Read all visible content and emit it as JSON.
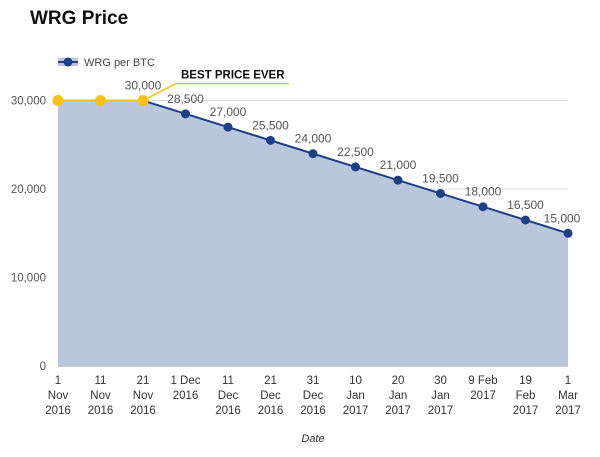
{
  "chart_data": {
    "type": "area",
    "title": "WRG Price",
    "xlabel": "Date",
    "ylabel": "",
    "legend_position": "top-left",
    "ylim": [
      0,
      33000
    ],
    "yticks": [
      0,
      10000,
      20000,
      30000
    ],
    "ytick_labels": [
      "0",
      "10,000",
      "20,000",
      "30,000"
    ],
    "grid": true,
    "categories": [
      [
        "1",
        "Nov",
        "2016"
      ],
      [
        "11",
        "Nov",
        "2016"
      ],
      [
        "21",
        "Nov",
        "2016"
      ],
      [
        "1 Dec",
        "2016"
      ],
      [
        "11",
        "Dec",
        "2016"
      ],
      [
        "21",
        "Dec",
        "2016"
      ],
      [
        "31",
        "Dec",
        "2016"
      ],
      [
        "10",
        "Jan",
        "2017"
      ],
      [
        "20",
        "Jan",
        "2017"
      ],
      [
        "30",
        "Jan",
        "2017"
      ],
      [
        "9 Feb",
        "2017"
      ],
      [
        "19",
        "Feb",
        "2017"
      ],
      [
        "1",
        "Mar",
        "2017"
      ]
    ],
    "series": [
      {
        "name": "WRG per BTC",
        "values": [
          30000,
          30000,
          30000,
          28500,
          27000,
          25500,
          24000,
          22500,
          21000,
          19500,
          18000,
          16500,
          15000
        ],
        "data_labels": [
          "",
          "",
          "30,000",
          "28,500",
          "27,000",
          "25,500",
          "24,000",
          "22,500",
          "21,000",
          "19,500",
          "18,000",
          "16,500",
          "15,000"
        ],
        "highlight_indices": [
          0,
          1,
          2
        ]
      }
    ],
    "annotation": {
      "text": "BEST PRICE EVER",
      "point_index": 2
    },
    "colors": {
      "line": "#1c3f86",
      "area": "#b9c6dc",
      "highlight": "#f7c21a",
      "grid": "#dddddd"
    }
  }
}
